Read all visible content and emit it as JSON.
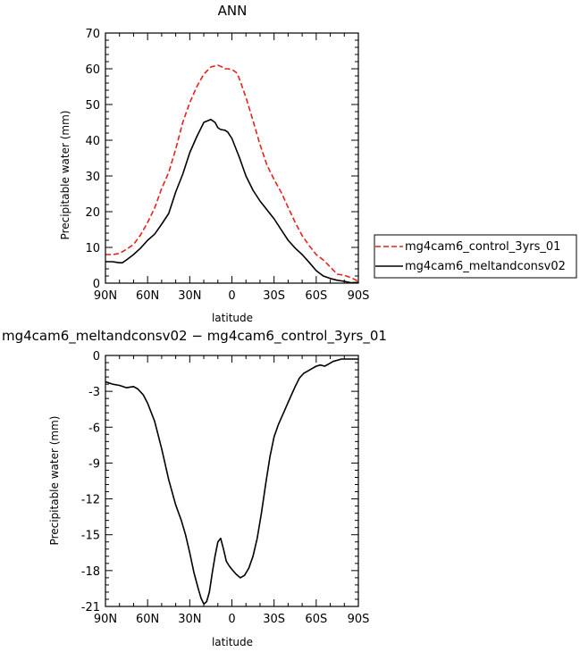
{
  "chart_data": [
    {
      "type": "line",
      "title": "ANN",
      "xlabel": "latitude",
      "ylabel": "Precipitable water (mm)",
      "x_ticks": [
        "90N",
        "60N",
        "30N",
        "0",
        "30S",
        "60S",
        "90S"
      ],
      "y_ticks": [
        "0",
        "10",
        "20",
        "30",
        "40",
        "50",
        "60",
        "70"
      ],
      "xlim": [
        90,
        -90
      ],
      "ylim": [
        0,
        70
      ],
      "legend": "right",
      "grid": false,
      "series": [
        {
          "name": "mg4cam6_control_3yrs_01",
          "color": "#e8211a",
          "dash": "dashed",
          "x": [
            90,
            85,
            80,
            75,
            70,
            65,
            60,
            55,
            50,
            45,
            40,
            35,
            30,
            25,
            20,
            15,
            10,
            7,
            5,
            3,
            0,
            -3,
            -5,
            -10,
            -15,
            -20,
            -25,
            -30,
            -35,
            -40,
            -45,
            -50,
            -55,
            -60,
            -65,
            -70,
            -75,
            -80,
            -85,
            -90
          ],
          "y": [
            8,
            8,
            8.3,
            9.5,
            10.8,
            13.5,
            17,
            21,
            26.5,
            31,
            37.5,
            45,
            50.5,
            55,
            58.5,
            60.5,
            61,
            60.5,
            60,
            60,
            59.8,
            59,
            57.5,
            52,
            45.5,
            38.8,
            33,
            29,
            25.5,
            21.2,
            17,
            13.3,
            10.5,
            8,
            6.5,
            4.5,
            2.5,
            2.2,
            1.5,
            0.5
          ]
        },
        {
          "name": "mg4cam6_meltandconsv02",
          "color": "#000000",
          "dash": "solid",
          "x": [
            90,
            85,
            80,
            78,
            75,
            70,
            65,
            60,
            55,
            50,
            45,
            40,
            35,
            30,
            25,
            20,
            15,
            12,
            10,
            8,
            5,
            3,
            0,
            -3,
            -5,
            -10,
            -15,
            -20,
            -25,
            -30,
            -35,
            -40,
            -45,
            -50,
            -55,
            -60,
            -65,
            -70,
            -75,
            -80,
            -85,
            -90
          ],
          "y": [
            6,
            6,
            5.7,
            5.7,
            6.5,
            8,
            9.8,
            12,
            13.7,
            16.5,
            19.5,
            25.5,
            30.5,
            36.5,
            41,
            45,
            45.8,
            45,
            43.5,
            43,
            42.8,
            42.3,
            40.5,
            37.5,
            35.5,
            30,
            26,
            23,
            20.5,
            18,
            15,
            12,
            9.8,
            8,
            5.8,
            3.5,
            2,
            1.3,
            0.8,
            0.5,
            0.1,
            0.2
          ]
        }
      ]
    },
    {
      "type": "line",
      "title": "mg4cam6_meltandconsv02 − mg4cam6_control_3yrs_01",
      "xlabel": "latitude",
      "ylabel": "Precipitable water (mm)",
      "x_ticks": [
        "90N",
        "60N",
        "30N",
        "0",
        "30S",
        "60S",
        "90S"
      ],
      "y_ticks": [
        "0",
        "-3",
        "-6",
        "-9",
        "-12",
        "-15",
        "-18",
        "-21"
      ],
      "xlim": [
        90,
        -90
      ],
      "ylim": [
        -21,
        0
      ],
      "grid": false,
      "series": [
        {
          "color": "#000000",
          "dash": "solid",
          "x": [
            90,
            85,
            80,
            75,
            70,
            67,
            63,
            60,
            55,
            50,
            45,
            40,
            36,
            33,
            30,
            27,
            24,
            22,
            20,
            18,
            16,
            14,
            12,
            10,
            8,
            6,
            4,
            2,
            0,
            -3,
            -6,
            -9,
            -12,
            -15,
            -18,
            -21,
            -24,
            -27,
            -30,
            -33,
            -36,
            -39,
            -42,
            -45,
            -48,
            -51,
            -54,
            -57,
            -60,
            -63,
            -66,
            -69,
            -72,
            -75,
            -78,
            -81,
            -84,
            -87,
            -90
          ],
          "y": [
            -2.2,
            -2.4,
            -2.5,
            -2.7,
            -2.6,
            -2.8,
            -3.3,
            -4,
            -5.5,
            -7.8,
            -10.4,
            -12.5,
            -13.8,
            -15,
            -16.5,
            -18.2,
            -19.5,
            -20.3,
            -20.8,
            -20.6,
            -19.8,
            -18.2,
            -16.8,
            -15.6,
            -15.3,
            -16.2,
            -17.2,
            -17.6,
            -17.9,
            -18.3,
            -18.6,
            -18.4,
            -17.8,
            -16.8,
            -15.3,
            -13.2,
            -10.8,
            -8.5,
            -6.8,
            -5.8,
            -5,
            -4.2,
            -3.4,
            -2.6,
            -1.9,
            -1.5,
            -1.3,
            -1.1,
            -0.9,
            -0.8,
            -0.9,
            -0.7,
            -0.5,
            -0.4,
            -0.3,
            -0.3,
            -0.3,
            -0.3,
            -0.3
          ]
        }
      ]
    }
  ]
}
